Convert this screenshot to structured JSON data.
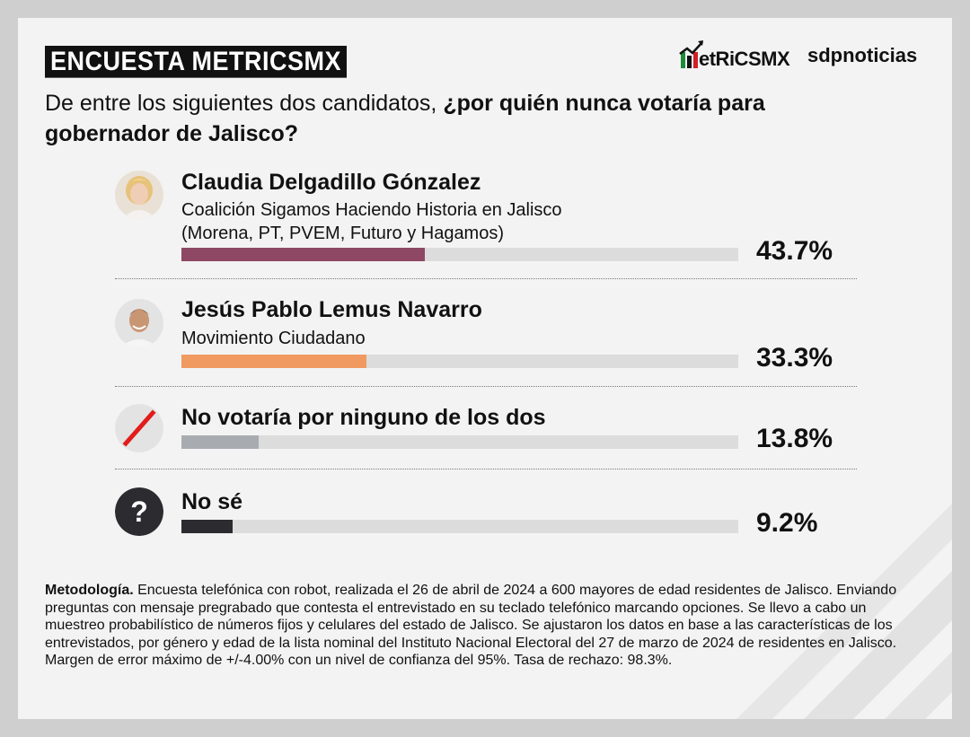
{
  "badge": "ENCUESTA METRICSMX",
  "logos": {
    "metrics": "etRiCSMX",
    "sdp": "sdpnoticias"
  },
  "question": {
    "part1": "De entre los siguientes dos candidatos, ",
    "part2": "¿por quién nunca votaría para gobernador de Jalisco?"
  },
  "chart_data": {
    "type": "bar",
    "orientation": "horizontal",
    "xlim": [
      0,
      100
    ],
    "categories": [
      "Claudia Delgadillo Gónzalez",
      "Jesús Pablo Lemus Navarro",
      "No votaría por ninguno de los dos",
      "No sé"
    ],
    "values": [
      43.7,
      33.3,
      13.8,
      9.2
    ],
    "value_labels": [
      "43.7%",
      "33.3%",
      "13.8%",
      "9.2%"
    ],
    "subtitles": [
      [
        "Coalición Sigamos Haciendo Historia en Jalisco",
        "(Morena, PT, PVEM, Futuro y Hagamos)"
      ],
      [
        "Movimiento Ciudadano"
      ],
      [],
      []
    ],
    "colors": [
      "#8e4863",
      "#f09a62",
      "#a8acb0",
      "#2c2c30"
    ]
  },
  "methodology": {
    "label": "Metodología.",
    "text": " Encuesta telefónica con robot, realizada el 26 de abril de 2024 a 600 mayores de edad residentes de Jalisco. Enviando preguntas con mensaje pregrabado que contesta el entrevistado en su teclado telefónico marcando opciones. Se llevo a cabo un muestreo probabilístico de números fijos y celulares del estado de Jalisco. Se ajustaron los datos en base a las características de los entrevistados, por género y edad de la lista nominal del Instituto Nacional Electoral del 27 de marzo de 2024 de residentes en Jalisco. Margen de error máximo de +/-4.00% con un nivel de confianza del 95%. Tasa de rechazo: 98.3%."
  }
}
